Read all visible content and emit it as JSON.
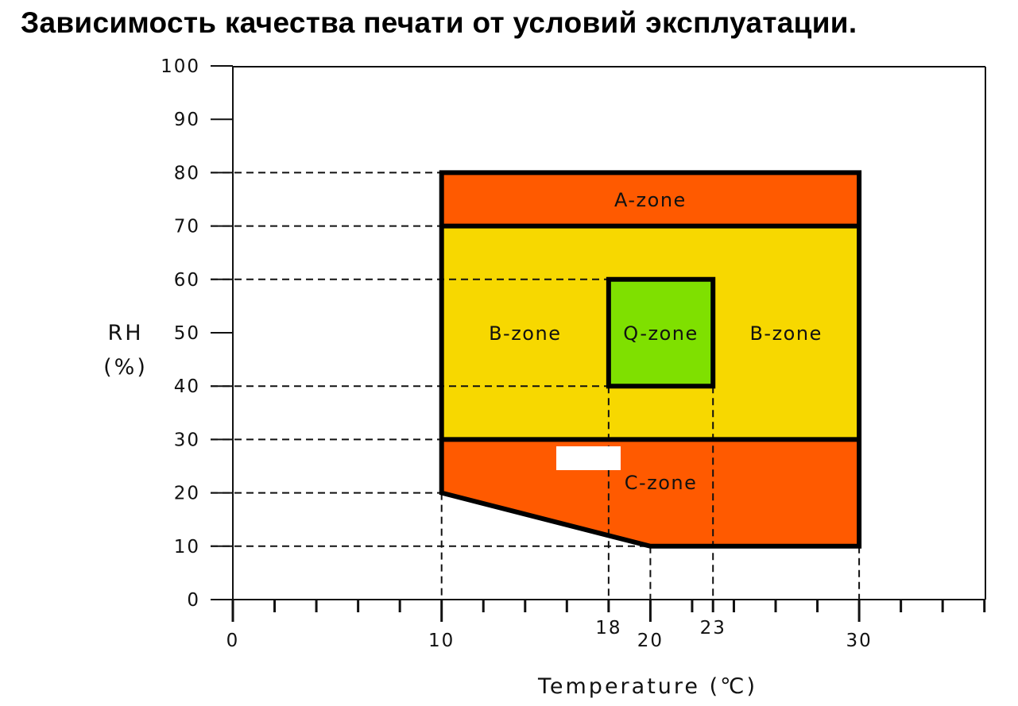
{
  "title": "Зависимость качества печати от условий эксплуатации.",
  "chart_data": {
    "type": "area",
    "xlabel": "Temperature (℃)",
    "ylabel_line1": "RH",
    "ylabel_line2": "(%)",
    "xlim": [
      0,
      36
    ],
    "ylim": [
      0,
      100
    ],
    "grid": false,
    "y_ticks": [
      0,
      10,
      20,
      30,
      40,
      50,
      60,
      70,
      80,
      90,
      100
    ],
    "x_ticks_labeled": [
      {
        "x": 0,
        "label": "0",
        "row": "low"
      },
      {
        "x": 10,
        "label": "10",
        "row": "low"
      },
      {
        "x": 18,
        "label": "18",
        "row": "high"
      },
      {
        "x": 20,
        "label": "20",
        "row": "low"
      },
      {
        "x": 23,
        "label": "23",
        "row": "high"
      },
      {
        "x": 30,
        "label": "30",
        "row": "low"
      }
    ],
    "x_minor_ticks": [
      2,
      4,
      6,
      8,
      12,
      14,
      16,
      22,
      24,
      26,
      28,
      32,
      34,
      36
    ],
    "zones": [
      {
        "name": "A-zone",
        "color": "#FF5A00",
        "polygon": [
          [
            10,
            70
          ],
          [
            30,
            70
          ],
          [
            30,
            80
          ],
          [
            10,
            80
          ]
        ]
      },
      {
        "name": "B-zone",
        "color": "#F7D800",
        "polygon": [
          [
            10,
            30
          ],
          [
            30,
            30
          ],
          [
            30,
            70
          ],
          [
            10,
            70
          ]
        ]
      },
      {
        "name": "C-zone",
        "color": "#FF5A00",
        "polygon": [
          [
            10,
            30
          ],
          [
            30,
            30
          ],
          [
            30,
            10
          ],
          [
            20,
            10
          ],
          [
            10,
            20
          ]
        ]
      },
      {
        "name": "Q-zone",
        "color": "#7FE000",
        "polygon": [
          [
            18,
            40
          ],
          [
            23,
            40
          ],
          [
            23,
            60
          ],
          [
            18,
            60
          ]
        ]
      }
    ],
    "zone_labels": [
      {
        "text": "A-zone",
        "x": 20,
        "y": 75
      },
      {
        "text": "B-zone",
        "x": 14,
        "y": 50
      },
      {
        "text": "Q-zone",
        "x": 20.5,
        "y": 50
      },
      {
        "text": "B-zone",
        "x": 26.5,
        "y": 50
      },
      {
        "text": "C-zone",
        "x": 20.5,
        "y": 22
      }
    ],
    "h_dash_guides": [
      {
        "y": 80,
        "x_end": 10
      },
      {
        "y": 70,
        "x_end": 10
      },
      {
        "y": 60,
        "x_end": 18
      },
      {
        "y": 40,
        "x_end": 18
      },
      {
        "y": 30,
        "x_end": 10
      },
      {
        "y": 20,
        "x_end": 10
      },
      {
        "y": 10,
        "x_end": 20
      }
    ],
    "v_dash_guides": [
      {
        "x": 10,
        "y_top": 20
      },
      {
        "x": 18,
        "y_top": 40
      },
      {
        "x": 20,
        "y_top": 10
      },
      {
        "x": 23,
        "y_top": 40
      },
      {
        "x": 30,
        "y_top": 10
      }
    ]
  }
}
